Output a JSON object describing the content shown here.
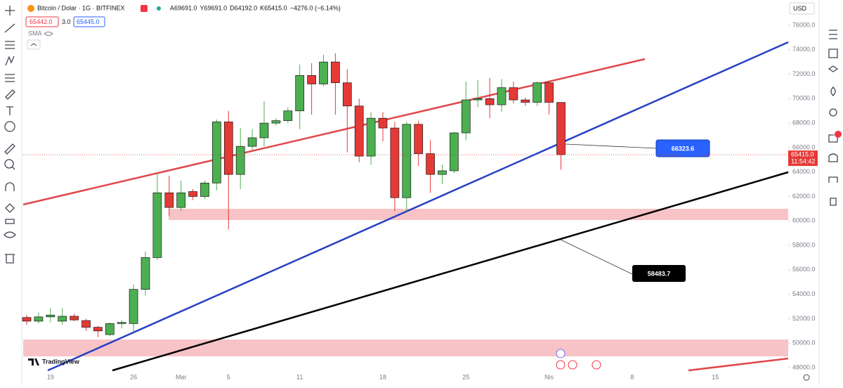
{
  "chart_data": {
    "type": "candlestick",
    "symbol": "Bitcoin / Dolar · 1G · BITFINEX",
    "ohlc_header": [
      "A69691.0",
      "Y69691.0",
      "D64192.0",
      "K65415.0",
      "−4276.0 (−6.14%)"
    ],
    "bid": "65442.0",
    "spread": "3.0",
    "ask": "65445.0",
    "indicator": "SMA",
    "currency": "USD",
    "brand": "TradingView",
    "up_color": "#4caf50",
    "down_color": "#e53935",
    "categories": [
      null,
      null,
      "19",
      null,
      null,
      null,
      null,
      null,
      null,
      "26",
      null,
      null,
      null,
      "Mar",
      null,
      null,
      null,
      "5",
      null,
      null,
      null,
      null,
      null,
      "11",
      null,
      null,
      null,
      null,
      null,
      null,
      "18",
      null,
      null,
      null,
      null,
      null,
      null,
      "25",
      null,
      null,
      null,
      null,
      null,
      null,
      "Nis",
      null,
      null,
      null,
      null,
      null,
      null,
      "8",
      null,
      null,
      null,
      null,
      null,
      null,
      "15",
      null
    ],
    "open": [
      52100,
      51800,
      52150,
      51800,
      52200,
      51850,
      51300,
      50700,
      51600,
      51600,
      54400,
      57000,
      62300,
      61100,
      62400,
      62000,
      63100,
      68100,
      63800,
      66100,
      66800,
      68000,
      68200,
      69000,
      71900,
      71200,
      73000,
      71300,
      69400,
      65300,
      68400,
      67600,
      61900,
      67900,
      65500,
      63800,
      64100,
      67200,
      69900,
      70000,
      69500,
      70900,
      69900,
      69700,
      71300,
      69691,
      null,
      null,
      null,
      null,
      null,
      null,
      null,
      null,
      null,
      null,
      null,
      null,
      null,
      null
    ],
    "high": [
      52300,
      52500,
      52900,
      52900,
      52400,
      52000,
      51400,
      51700,
      51900,
      54800,
      57500,
      64000,
      63700,
      63300,
      62600,
      63300,
      68300,
      69000,
      67600,
      67500,
      69800,
      68400,
      69300,
      72800,
      72900,
      73600,
      73700,
      72400,
      70000,
      68900,
      68900,
      68100,
      68100,
      68200,
      66600,
      64600,
      67300,
      71400,
      71500,
      71700,
      71600,
      71400,
      70100,
      71400,
      71400,
      69691,
      null,
      null,
      null,
      null,
      null,
      null,
      null,
      null,
      null,
      null,
      null,
      null,
      null,
      null
    ],
    "low": [
      51500,
      51600,
      51700,
      51500,
      51800,
      51000,
      50500,
      50600,
      51200,
      50900,
      53900,
      56800,
      60400,
      60800,
      61700,
      61800,
      62500,
      59300,
      62600,
      65800,
      66100,
      67800,
      68000,
      67500,
      68700,
      71000,
      68700,
      65600,
      64800,
      64600,
      66500,
      60800,
      60800,
      64500,
      62300,
      63000,
      63900,
      66600,
      69300,
      68400,
      68900,
      69600,
      69400,
      69400,
      68700,
      64192,
      null,
      null,
      null,
      null,
      null,
      null,
      null,
      null,
      null,
      null,
      null,
      null,
      null,
      null
    ],
    "close": [
      51800,
      52150,
      52300,
      52200,
      51900,
      51300,
      51000,
      51600,
      51700,
      54400,
      57000,
      62300,
      61100,
      62300,
      62000,
      63100,
      68100,
      63800,
      66100,
      66800,
      68000,
      68200,
      69000,
      71900,
      71200,
      73000,
      71300,
      69400,
      65300,
      68400,
      67600,
      61900,
      67900,
      65500,
      63800,
      64100,
      67200,
      69900,
      70000,
      69500,
      70900,
      69900,
      69700,
      71300,
      69700,
      65415,
      null,
      null,
      null,
      null,
      null,
      null,
      null,
      null,
      null,
      null,
      null,
      null,
      null,
      null
    ],
    "ylim": [
      46620,
      78070
    ],
    "yticks": [
      {
        "value": 48000,
        "label": "48000.0"
      },
      {
        "value": 50000,
        "label": "50000.0"
      },
      {
        "value": 52000,
        "label": "52000.0"
      },
      {
        "value": 54000,
        "label": "54000.0"
      },
      {
        "value": 56000,
        "label": "56000.0"
      },
      {
        "value": 58000,
        "label": "58000.0"
      },
      {
        "value": 60000,
        "label": "60000.0"
      },
      {
        "value": 62000,
        "label": "62000.0"
      },
      {
        "value": 64000,
        "label": "64000.0"
      },
      {
        "value": 66000,
        "label": "66000.0"
      },
      {
        "value": 68000,
        "label": "68000.0"
      },
      {
        "value": 70000,
        "label": "70000.0"
      },
      {
        "value": 72000,
        "label": "72000.0"
      },
      {
        "value": 74000,
        "label": "74000.0"
      },
      {
        "value": 76000,
        "label": "76000.0"
      }
    ],
    "last_price": {
      "value": 65415,
      "label": "65415.0"
    },
    "countdown": "11:54:42",
    "price_labels": [
      66323.6,
      58483.7
    ],
    "notification_count": "1"
  }
}
